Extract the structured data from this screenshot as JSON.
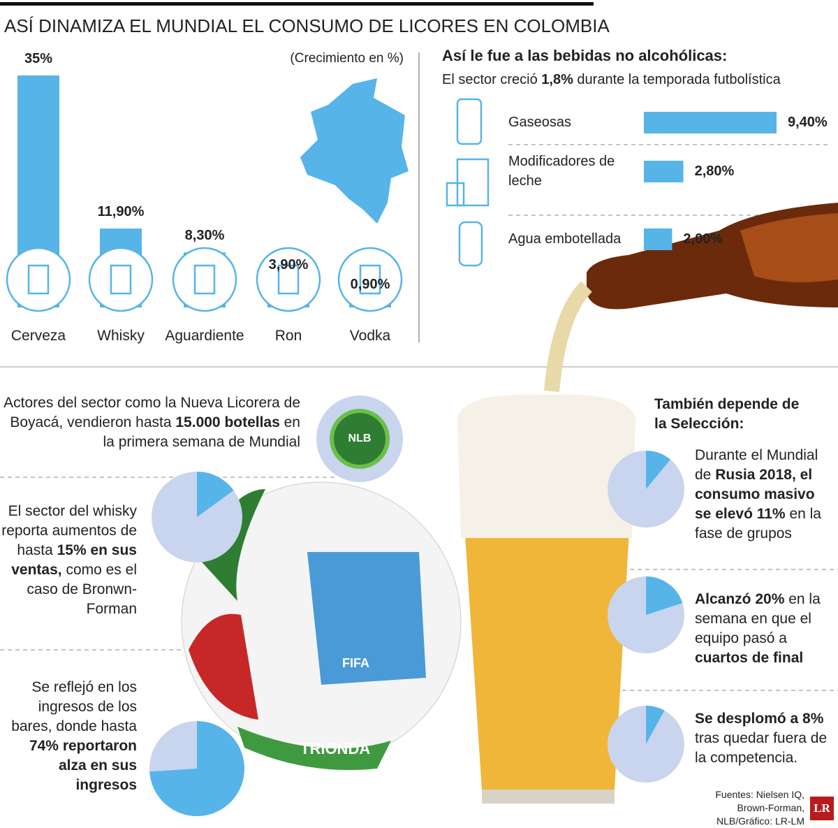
{
  "title": "ASÍ DINAMIZA EL MUNDIAL EL CONSUMO DE LICORES EN COLOMBIA",
  "chart_data": [
    {
      "type": "bar",
      "subtitle": "(Crecimiento en %)",
      "categories": [
        "Cerveza",
        "Whisky",
        "Aguardiente",
        "Ron",
        "Vodka"
      ],
      "values": [
        35,
        11.9,
        8.3,
        3.9,
        0.9
      ],
      "value_labels": [
        "35%",
        "11,90%",
        "8,30%",
        "3,90%",
        "0,90%"
      ],
      "color": "#56b4e9"
    },
    {
      "type": "barh",
      "title": "Así le fue a las bebidas no alcohólicas:",
      "subtitle_parts": [
        {
          "text": "El sector creció ",
          "bold": false
        },
        {
          "text": "1,8%",
          "bold": true
        },
        {
          "text": " durante la temporada futbolística",
          "bold": false
        }
      ],
      "categories": [
        "Gaseosas",
        "Modificadores de leche",
        "Agua embotellada"
      ],
      "values": [
        9.4,
        2.8,
        2.0
      ],
      "value_labels": [
        "9,40%",
        "2,80%",
        "2,00%"
      ],
      "color": "#56b4e9"
    },
    {
      "type": "pie",
      "values": [
        15
      ],
      "colors": [
        "#56b4e9",
        "#c9d5ee"
      ],
      "text_parts": [
        {
          "text": "El sector del whisky reporta aumentos de hasta ",
          "bold": false
        },
        {
          "text": "15% en sus ventas,",
          "bold": true
        },
        {
          "text": " como es el caso de Bronwn-Forman",
          "bold": false
        }
      ]
    },
    {
      "type": "pie",
      "values": [
        74
      ],
      "colors": [
        "#56b4e9",
        "#c9d5ee"
      ],
      "text_parts": [
        {
          "text": "Se reflejó en los ingresos de los bares, donde hasta ",
          "bold": false
        },
        {
          "text": "74% reportaron alza en sus ingresos",
          "bold": true
        }
      ]
    },
    {
      "type": "pie",
      "values": [
        11
      ],
      "colors": [
        "#56b4e9",
        "#c9d5ee"
      ],
      "text_parts": [
        {
          "text": "Durante el Mundial de ",
          "bold": false
        },
        {
          "text": "Rusia 2018, el consumo masivo se elevó 11%",
          "bold": true
        },
        {
          "text": " en la fase de grupos",
          "bold": false
        }
      ]
    },
    {
      "type": "pie",
      "values": [
        20
      ],
      "colors": [
        "#56b4e9",
        "#c9d5ee"
      ],
      "text_parts": [
        {
          "text": "Alcanzó 20%",
          "bold": true
        },
        {
          "text": " en la semana en que el equipo pasó a ",
          "bold": false
        },
        {
          "text": "cuartos de final",
          "bold": true
        }
      ]
    },
    {
      "type": "pie",
      "values": [
        8
      ],
      "colors": [
        "#56b4e9",
        "#c9d5ee"
      ],
      "text_parts": [
        {
          "text": "Se desplomó a 8%",
          "bold": true
        },
        {
          "text": " tras quedar fuera de la competencia.",
          "bold": false
        }
      ]
    }
  ],
  "note_parts": [
    {
      "text": "Actores del sector como la Nueva Licorera de Boyacá, vendieron hasta ",
      "bold": false
    },
    {
      "text": "15.000 botellas",
      "bold": true
    },
    {
      "text": " en la primera semana de Mundial",
      "bold": false
    }
  ],
  "right_heading": "También depende de la Selección:",
  "nlb": "NLB",
  "fifa": "FIFA",
  "ball": "TRIONDA",
  "sources": "Fuentes: Nielsen IQ, Brown-Forman, NLB/Gráfico: LR-LM",
  "logo": "LR"
}
